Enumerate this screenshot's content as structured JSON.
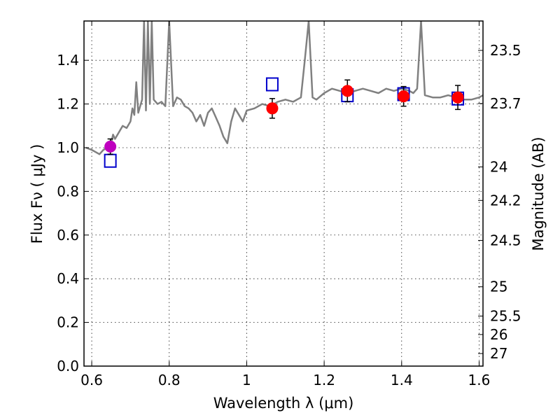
{
  "chart_data": {
    "type": "scatter",
    "title": "",
    "xlabel": "Wavelength  λ (μm)",
    "ylabel": "Flux  Fν  ( μJy )",
    "ylabel_right": "Magnitude (AB)",
    "xlim": [
      0.58,
      1.61
    ],
    "ylim": [
      0.0,
      1.58
    ],
    "grid": true,
    "x_ticks": [
      0.6,
      0.8,
      1.0,
      1.2,
      1.4,
      1.6
    ],
    "x_tick_labels": [
      "0.6",
      "0.8",
      "1",
      "1.2",
      "1.4",
      "1.6"
    ],
    "y_ticks": [
      0.0,
      0.2,
      0.4,
      0.6,
      0.8,
      1.0,
      1.2,
      1.4
    ],
    "y_tick_labels": [
      "0.0",
      "0.2",
      "0.4",
      "0.6",
      "0.8",
      "1.0",
      "1.2",
      "1.4"
    ],
    "mag_ticks": [
      23.5,
      23.7,
      24,
      24.2,
      24.5,
      25,
      25.5,
      26,
      27
    ],
    "mag_tick_labels": [
      "23.5",
      "23.7",
      "24",
      "24.2",
      "24.5",
      "25",
      "25.5",
      "26",
      "27"
    ],
    "colors": {
      "spectrum": "#808080",
      "observed": "#ff0000",
      "observed_first": "#bf00bf",
      "model": "#0000cc",
      "errorbar": "#000000"
    },
    "series": [
      {
        "name": "model spectrum",
        "kind": "line",
        "x": [
          0.585,
          0.6,
          0.61,
          0.62,
          0.63,
          0.64,
          0.65,
          0.655,
          0.66,
          0.67,
          0.68,
          0.69,
          0.7,
          0.705,
          0.71,
          0.715,
          0.72,
          0.73,
          0.735,
          0.74,
          0.745,
          0.75,
          0.755,
          0.76,
          0.77,
          0.78,
          0.79,
          0.8,
          0.81,
          0.82,
          0.83,
          0.84,
          0.85,
          0.86,
          0.87,
          0.88,
          0.89,
          0.9,
          0.91,
          0.92,
          0.93,
          0.94,
          0.95,
          0.96,
          0.97,
          0.98,
          0.99,
          1.0,
          1.02,
          1.04,
          1.06,
          1.08,
          1.1,
          1.12,
          1.14,
          1.15,
          1.16,
          1.17,
          1.18,
          1.2,
          1.22,
          1.24,
          1.26,
          1.28,
          1.3,
          1.32,
          1.34,
          1.36,
          1.38,
          1.4,
          1.42,
          1.43,
          1.44,
          1.45,
          1.46,
          1.48,
          1.5,
          1.52,
          1.54,
          1.56,
          1.58,
          1.6,
          1.61
        ],
        "y": [
          1.0,
          0.99,
          0.98,
          0.97,
          0.99,
          1.0,
          1.02,
          1.06,
          1.04,
          1.07,
          1.1,
          1.09,
          1.12,
          1.18,
          1.15,
          1.3,
          1.16,
          1.22,
          1.58,
          1.17,
          1.58,
          1.2,
          1.58,
          1.22,
          1.2,
          1.21,
          1.19,
          1.58,
          1.19,
          1.23,
          1.22,
          1.19,
          1.18,
          1.16,
          1.12,
          1.15,
          1.1,
          1.16,
          1.18,
          1.14,
          1.1,
          1.05,
          1.02,
          1.12,
          1.18,
          1.15,
          1.12,
          1.17,
          1.18,
          1.2,
          1.19,
          1.21,
          1.22,
          1.21,
          1.23,
          1.4,
          1.58,
          1.23,
          1.22,
          1.25,
          1.27,
          1.26,
          1.25,
          1.26,
          1.27,
          1.26,
          1.25,
          1.27,
          1.26,
          1.27,
          1.26,
          1.25,
          1.27,
          1.58,
          1.24,
          1.23,
          1.23,
          1.24,
          1.23,
          1.22,
          1.22,
          1.23,
          1.24
        ]
      },
      {
        "name": "observed photometry",
        "kind": "points",
        "x": [
          0.648,
          1.066,
          1.26,
          1.405,
          1.545
        ],
        "y": [
          1.005,
          1.18,
          1.26,
          1.235,
          1.23
        ],
        "yerr": [
          0.035,
          0.045,
          0.05,
          0.045,
          0.055
        ]
      },
      {
        "name": "model photometry",
        "kind": "points",
        "x": [
          0.648,
          1.066,
          1.26,
          1.405,
          1.545
        ],
        "y": [
          0.94,
          1.29,
          1.24,
          1.245,
          1.225
        ]
      }
    ]
  }
}
